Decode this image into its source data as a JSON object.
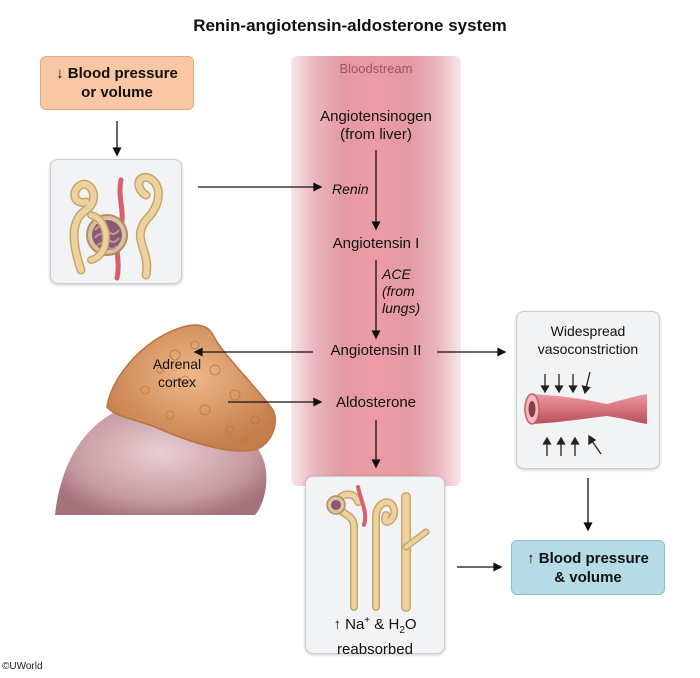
{
  "title": "Renin-angiotensin-aldosterone system",
  "bloodstream_label": "Bloodstream",
  "trigger": {
    "line1": "↓ Blood pressure",
    "line2": "or volume"
  },
  "flow": {
    "angiotensinogen_line1": "Angiotensinogen",
    "angiotensinogen_line2": "(from liver)",
    "renin": "Renin",
    "angiotensin_i": "Angiotensin I",
    "ace_line1": "ACE",
    "ace_line2": "(from",
    "ace_line3": "lungs)",
    "angiotensin_ii": "Angiotensin II",
    "aldosterone": "Aldosterone"
  },
  "adrenal": {
    "line1": "Adrenal",
    "line2": "cortex"
  },
  "vessel": {
    "line1": "Widespread",
    "line2": "vasoconstriction"
  },
  "tubule": {
    "na": "↑ Na",
    "na_charge": "+",
    "mid": " & H",
    "h2o_sub": "2",
    "o": "O",
    "line2": "reabsorbed"
  },
  "result": {
    "line1": "↑ Blood pressure",
    "line2": "& volume"
  },
  "credit": "©UWorld",
  "colors": {
    "trigger_box": "#f9c7a3",
    "result_box": "#b6dbe6",
    "bloodstream": "#e39aa3",
    "adrenal": "#d69361",
    "kidney_tubule": "#e8c98c",
    "vessel": "#d9727c"
  }
}
